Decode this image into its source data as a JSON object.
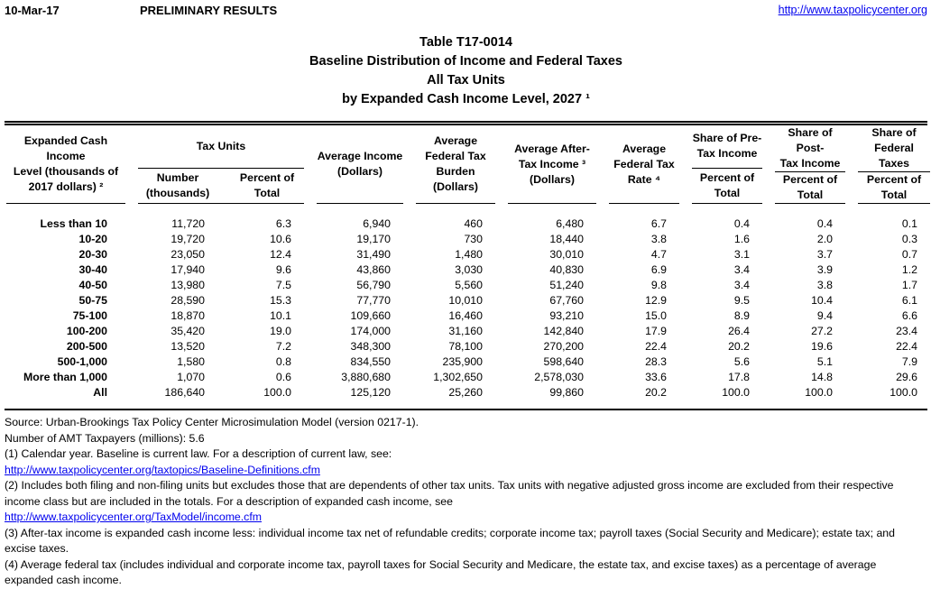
{
  "page_header": {
    "date": "10-Mar-17",
    "status": "PRELIMINARY RESULTS",
    "site_url": "http://www.taxpolicycenter.org"
  },
  "title": {
    "table_number": "Table T17-0014",
    "line2": "Baseline Distribution of Income and Federal Taxes",
    "line3": "All Tax Units",
    "line4": "by Expanded Cash Income Level, 2027 ¹"
  },
  "table": {
    "headers": {
      "income_level": "Expanded Cash Income\nLevel (thousands of\n2017 dollars) ²",
      "tax_units_group": "Tax Units",
      "tax_units_number": "Number\n(thousands)",
      "tax_units_percent": "Percent of\nTotal",
      "avg_income": "Average Income\n(Dollars)",
      "avg_federal_tax_burden": "Average\nFederal Tax\nBurden\n(Dollars)",
      "avg_after_tax_income": "Average After-\nTax Income ³\n(Dollars)",
      "avg_federal_tax_rate": "Average\nFederal Tax\nRate ⁴",
      "share_pre_tax": "Share of Pre-\nTax Income",
      "share_post_tax": "Share of Post-\nTax Income",
      "share_federal_taxes": "Share of\nFederal Taxes",
      "percent_of_total": "Percent of\nTotal"
    },
    "rows": [
      [
        "Less than 10",
        "11,720",
        "6.3",
        "6,940",
        "460",
        "6,480",
        "6.7",
        "0.4",
        "0.4",
        "0.1"
      ],
      [
        "10-20",
        "19,720",
        "10.6",
        "19,170",
        "730",
        "18,440",
        "3.8",
        "1.6",
        "2.0",
        "0.3"
      ],
      [
        "20-30",
        "23,050",
        "12.4",
        "31,490",
        "1,480",
        "30,010",
        "4.7",
        "3.1",
        "3.7",
        "0.7"
      ],
      [
        "30-40",
        "17,940",
        "9.6",
        "43,860",
        "3,030",
        "40,830",
        "6.9",
        "3.4",
        "3.9",
        "1.2"
      ],
      [
        "40-50",
        "13,980",
        "7.5",
        "56,790",
        "5,560",
        "51,240",
        "9.8",
        "3.4",
        "3.8",
        "1.7"
      ],
      [
        "50-75",
        "28,590",
        "15.3",
        "77,770",
        "10,010",
        "67,760",
        "12.9",
        "9.5",
        "10.4",
        "6.1"
      ],
      [
        "75-100",
        "18,870",
        "10.1",
        "109,660",
        "16,460",
        "93,210",
        "15.0",
        "8.9",
        "9.4",
        "6.6"
      ],
      [
        "100-200",
        "35,420",
        "19.0",
        "174,000",
        "31,160",
        "142,840",
        "17.9",
        "26.4",
        "27.2",
        "23.4"
      ],
      [
        "200-500",
        "13,520",
        "7.2",
        "348,300",
        "78,100",
        "270,200",
        "22.4",
        "20.2",
        "19.6",
        "22.4"
      ],
      [
        "500-1,000",
        "1,580",
        "0.8",
        "834,550",
        "235,900",
        "598,640",
        "28.3",
        "5.6",
        "5.1",
        "7.9"
      ],
      [
        "More than 1,000",
        "1,070",
        "0.6",
        "3,880,680",
        "1,302,650",
        "2,578,030",
        "33.6",
        "17.8",
        "14.8",
        "29.6"
      ],
      [
        "All",
        "186,640",
        "100.0",
        "125,120",
        "25,260",
        "99,860",
        "20.2",
        "100.0",
        "100.0",
        "100.0"
      ]
    ]
  },
  "footnotes": {
    "source": "Source: Urban-Brookings Tax Policy Center Microsimulation Model (version 0217-1).",
    "amt": "Number of AMT Taxpayers (millions): 5.6",
    "note1": "(1) Calendar year. Baseline is current law. For a description of current law, see:",
    "link1": "http://www.taxpolicycenter.org/taxtopics/Baseline-Definitions.cfm",
    "note2": "(2) Includes both filing and non-filing units but excludes those that are dependents of other tax units. Tax units with negative adjusted gross income are excluded from their respective income class but are included in the totals. For a description of expanded cash income, see",
    "link2": "http://www.taxpolicycenter.org/TaxModel/income.cfm",
    "note3": "(3) After-tax income is expanded cash income less: individual income tax net of refundable credits; corporate income tax; payroll taxes (Social Security and Medicare); estate tax; and excise taxes.",
    "note4": "(4) Average federal tax (includes individual and corporate income tax, payroll taxes for Social Security and Medicare, the estate tax, and excise taxes) as a percentage of average expanded cash income."
  },
  "colors": {
    "text": "#000000",
    "link": "#0000EE",
    "rule": "#000000"
  }
}
